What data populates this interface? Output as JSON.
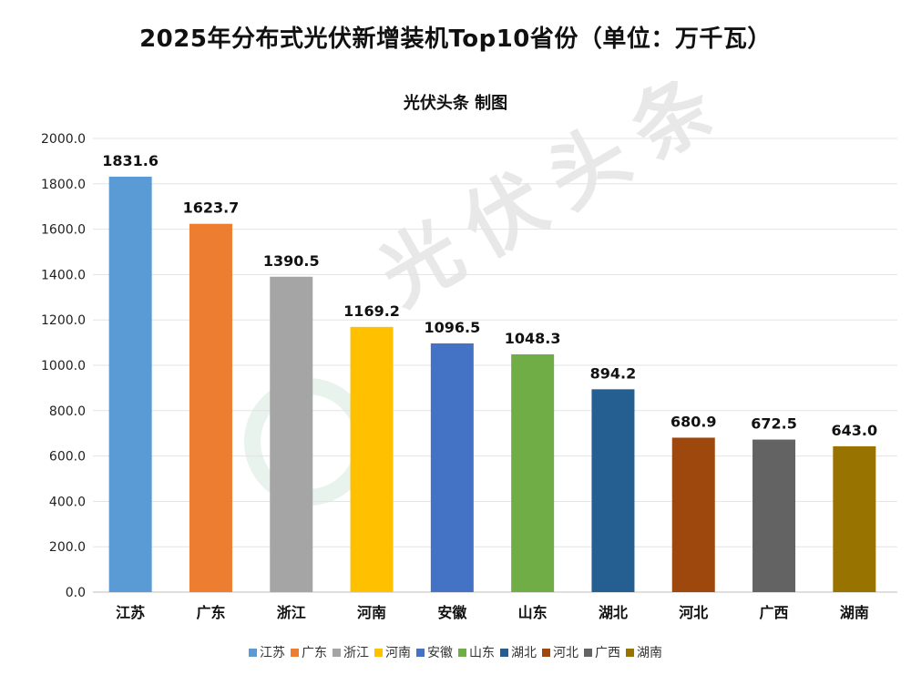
{
  "header": {
    "title": "2025年分布式光伏新增装机Top10省份（单位：万千瓦）",
    "subtitle": "光伏头条 制图"
  },
  "watermark": {
    "text": "光伏头条"
  },
  "chart_data": {
    "type": "bar",
    "title": "2025年分布式光伏新增装机Top10省份（单位：万千瓦）",
    "subtitle": "光伏头条 制图",
    "xlabel": "",
    "ylabel": "",
    "ylim": [
      0,
      2000
    ],
    "yticks": [
      0,
      200,
      400,
      600,
      800,
      1000,
      1200,
      1400,
      1600,
      1800,
      2000
    ],
    "ytick_labels": [
      "0.0",
      "200.0",
      "400.0",
      "600.0",
      "800.0",
      "1000.0",
      "1200.0",
      "1400.0",
      "1600.0",
      "1800.0",
      "2000.0"
    ],
    "grid": true,
    "legend_position": "bottom",
    "categories": [
      "江苏",
      "广东",
      "浙江",
      "河南",
      "安徽",
      "山东",
      "湖北",
      "河北",
      "广西",
      "湖南"
    ],
    "values": [
      1831.6,
      1623.7,
      1390.5,
      1169.2,
      1096.5,
      1048.3,
      894.2,
      680.9,
      672.5,
      643.0
    ],
    "value_labels": [
      "1831.6",
      "1623.7",
      "1390.5",
      "1169.2",
      "1096.5",
      "1048.3",
      "894.2",
      "680.9",
      "672.5",
      "643.0"
    ],
    "colors": [
      "#5B9BD5",
      "#ED7D31",
      "#A5A5A5",
      "#FFC000",
      "#4472C4",
      "#70AD47",
      "#255E91",
      "#9E480E",
      "#636363",
      "#997300"
    ]
  }
}
